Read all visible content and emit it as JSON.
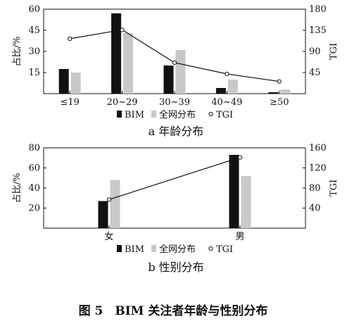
{
  "figure_caption": "图 5　BIM 关注者年龄与性别分布",
  "chart_data": [
    {
      "type": "bar",
      "caption": "a  年龄分布",
      "ylabel": "占比/%",
      "y2label": "TGI",
      "categories": [
        "≤19",
        "20~29",
        "30~39",
        "40~49",
        "≥50"
      ],
      "ylim": [
        0,
        60
      ],
      "y_ticks": [
        15,
        30,
        45,
        60
      ],
      "y2lim": [
        0,
        180
      ],
      "y2_ticks": [
        45,
        90,
        135,
        180
      ],
      "grid": false,
      "legend": "bottom",
      "series": [
        {
          "name": "BIM",
          "kind": "bar",
          "color": "#111111",
          "values": [
            17.5,
            57,
            20,
            4,
            1
          ]
        },
        {
          "name": "全网分布",
          "kind": "bar",
          "color": "#c8c8c8",
          "values": [
            15,
            43,
            31,
            10,
            3
          ]
        },
        {
          "name": "TGI",
          "kind": "line",
          "axis": "right",
          "color": "#111111",
          "values": [
            117,
            136,
            66,
            42,
            26
          ]
        }
      ]
    },
    {
      "type": "bar",
      "caption": "b  性别分布",
      "ylabel": "占比/%",
      "y2label": "TGI",
      "categories": [
        "女",
        "男"
      ],
      "ylim": [
        0,
        80
      ],
      "y_ticks": [
        20,
        40,
        60,
        80
      ],
      "y2lim": [
        0,
        160
      ],
      "y2_ticks": [
        40,
        80,
        120,
        160
      ],
      "grid": false,
      "legend": "bottom",
      "series": [
        {
          "name": "BIM",
          "kind": "bar",
          "color": "#111111",
          "values": [
            27,
            73
          ]
        },
        {
          "name": "全网分布",
          "kind": "bar",
          "color": "#c8c8c8",
          "values": [
            48,
            52
          ]
        },
        {
          "name": "TGI",
          "kind": "line",
          "axis": "right",
          "color": "#111111",
          "values": [
            57,
            141
          ]
        }
      ]
    }
  ]
}
